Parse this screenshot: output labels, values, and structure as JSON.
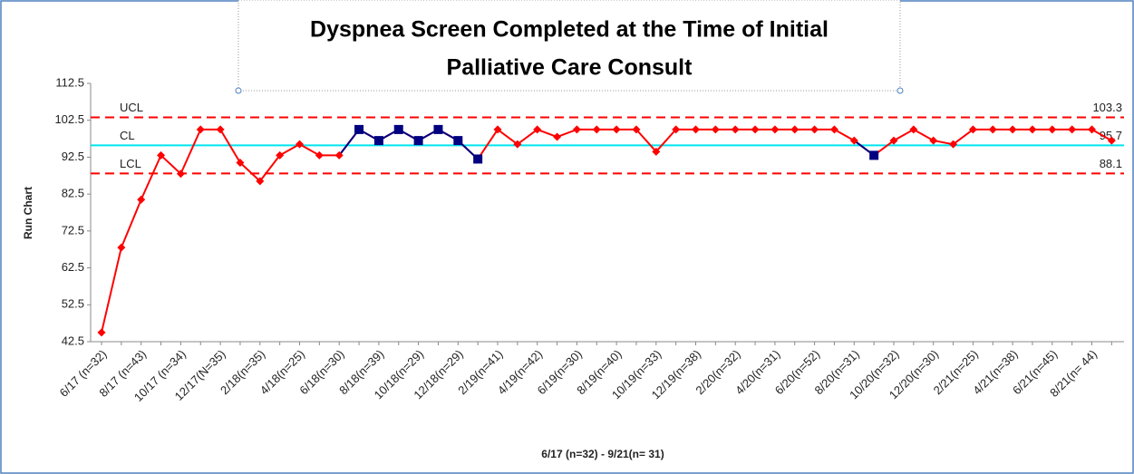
{
  "chart_data": {
    "type": "line",
    "title_lines": [
      "Dyspnea Screen Completed at the Time of Initial",
      "Palliative Care Consult"
    ],
    "y_label": "Run Chart",
    "x_label": "6/17 (n=32) - 9/21(n= 31)",
    "categories": [
      "6/17 (n=32)",
      null,
      "8/17 (n=43)",
      null,
      "10/17 (n=34)",
      null,
      "12/17(N=35)",
      null,
      "2/18(n=35)",
      null,
      "4/18(n=25)",
      null,
      "6/18(n=30)",
      null,
      "8/18(n=39)",
      null,
      "10/18(n=29)",
      null,
      "12/18(n=29)",
      null,
      "2/19(n=41)",
      null,
      "4/19(n=42)",
      null,
      "6/19(n=30)",
      null,
      "8/19(n=40)",
      null,
      "10/19(n=33)",
      null,
      "12/19(n=38)",
      null,
      "2/20(n=32)",
      null,
      "4/20(n=31)",
      null,
      "6/20(n=52)",
      null,
      "8/20(n=31)",
      null,
      "10/20(n=32)",
      null,
      "12/20(n=30)",
      null,
      "2/21(n=25)",
      null,
      "4/21(n=38)",
      null,
      "6/21(n=45)",
      null,
      "8/21(n= 44)",
      null
    ],
    "values": [
      45,
      68,
      81,
      93,
      88,
      100,
      100,
      91,
      86,
      93,
      96,
      93,
      93,
      100,
      97,
      100,
      97,
      100,
      97,
      92,
      100,
      96,
      100,
      98,
      100,
      100,
      100,
      100,
      94,
      100,
      100,
      100,
      100,
      100,
      100,
      100,
      100,
      100,
      97,
      93,
      97,
      100,
      97,
      96,
      100,
      100,
      100,
      100,
      100,
      100,
      100,
      97
    ],
    "color": "#ff0000",
    "point_colors": [
      "#ff0000",
      "#ff0000",
      "#ff0000",
      "#ff0000",
      "#ff0000",
      "#ff0000",
      "#ff0000",
      "#ff0000",
      "#ff0000",
      "#ff0000",
      "#ff0000",
      "#ff0000",
      "#ff0000",
      "#000080",
      "#000080",
      "#000080",
      "#000080",
      "#000080",
      "#000080",
      "#000080",
      "#ff0000",
      "#ff0000",
      "#ff0000",
      "#ff0000",
      "#ff0000",
      "#ff0000",
      "#ff0000",
      "#ff0000",
      "#ff0000",
      "#ff0000",
      "#ff0000",
      "#ff0000",
      "#ff0000",
      "#ff0000",
      "#ff0000",
      "#ff0000",
      "#ff0000",
      "#ff0000",
      "#ff0000",
      "#000080",
      "#ff0000",
      "#ff0000",
      "#ff0000",
      "#ff0000",
      "#ff0000",
      "#ff0000",
      "#ff0000",
      "#ff0000",
      "#ff0000",
      "#ff0000",
      "#ff0000",
      "#ff0000"
    ],
    "control_lines": [
      {
        "name": "UCL",
        "value": 103.3,
        "color": "#ff0000",
        "dashed": true
      },
      {
        "name": "CL",
        "value": 95.7,
        "color": "#00e5ee",
        "dashed": false
      },
      {
        "name": "LCL",
        "value": 88.1,
        "color": "#ff0000",
        "dashed": true
      }
    ],
    "ylim": [
      42.5,
      112.5
    ],
    "yticks": [
      42.5,
      52.5,
      62.5,
      72.5,
      82.5,
      92.5,
      102.5,
      112.5
    ]
  }
}
